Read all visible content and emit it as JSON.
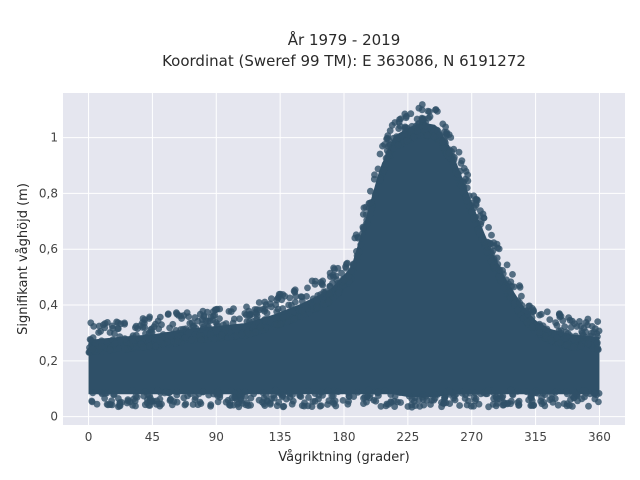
{
  "chart_data": {
    "type": "scatter",
    "title_lines": [
      "År 1979 - 2019",
      "Koordinat (Sweref 99 TM): E 363086, N 6191272"
    ],
    "xlabel": "Vågriktning (grader)",
    "ylabel": "Signifikant våghöjd (m)",
    "xlim": [
      -18,
      378
    ],
    "ylim": [
      -0.03,
      1.16
    ],
    "x_ticks": [
      0,
      45,
      90,
      135,
      180,
      225,
      270,
      315,
      360
    ],
    "x_tick_labels": [
      "0",
      "45",
      "90",
      "135",
      "180",
      "225",
      "270",
      "315",
      "360"
    ],
    "y_ticks": [
      0,
      0.2,
      0.4,
      0.6,
      0.8,
      1.0
    ],
    "y_tick_labels": [
      "0",
      "0,2",
      "0,4",
      "0,6",
      "0,8",
      "1"
    ],
    "grid": true,
    "marker_color": "#2f5068",
    "plot_background": "#e5e6ef",
    "envelope": {
      "direction": [
        0,
        20,
        45,
        70,
        90,
        110,
        130,
        150,
        170,
        185,
        195,
        205,
        215,
        225,
        235,
        245,
        255,
        265,
        275,
        285,
        295,
        305,
        315,
        325,
        340,
        360
      ],
      "lower": [
        0.07,
        0.07,
        0.07,
        0.07,
        0.07,
        0.07,
        0.07,
        0.07,
        0.07,
        0.07,
        0.07,
        0.07,
        0.07,
        0.06,
        0.06,
        0.06,
        0.07,
        0.07,
        0.07,
        0.07,
        0.07,
        0.07,
        0.07,
        0.07,
        0.07,
        0.07
      ],
      "upper": [
        0.29,
        0.3,
        0.31,
        0.33,
        0.34,
        0.35,
        0.38,
        0.42,
        0.47,
        0.55,
        0.72,
        0.9,
        1.02,
        1.05,
        1.07,
        1.06,
        0.98,
        0.85,
        0.72,
        0.6,
        0.5,
        0.42,
        0.36,
        0.33,
        0.31,
        0.3
      ]
    }
  }
}
